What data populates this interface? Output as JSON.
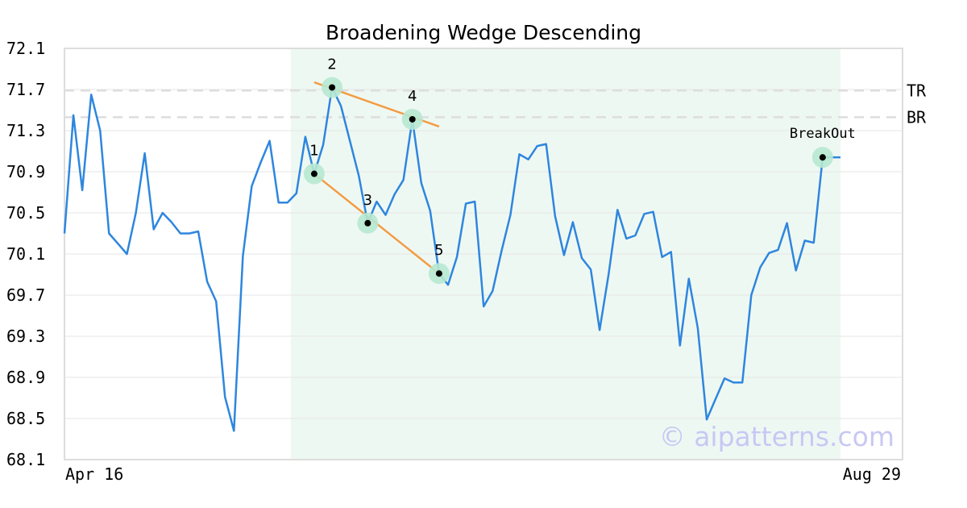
{
  "chart_data": {
    "type": "line",
    "title": "Broadening Wedge Descending",
    "xlabel": "",
    "ylabel": "",
    "ylim": [
      68.1,
      72.1
    ],
    "yticks": [
      "72.1",
      "71.7",
      "71.3",
      "70.9",
      "70.5",
      "70.1",
      "69.7",
      "69.3",
      "68.9",
      "68.5",
      "68.1"
    ],
    "x_labels": {
      "start": "Apr 16",
      "end": "Aug 29"
    },
    "grid": true,
    "colors": {
      "line": "#2e86de",
      "trend": "#f39c44",
      "marker_halo": "#b7e8d2",
      "region": "#eef8f3",
      "ref_line": "#dddddd"
    },
    "series": [
      {
        "values": [
          70.3,
          71.45,
          70.72,
          71.65,
          71.3,
          70.3,
          70.2,
          70.1,
          70.5,
          71.08,
          70.34,
          70.5,
          70.41,
          70.3,
          70.3,
          70.32,
          69.83,
          69.64,
          68.71,
          68.38,
          70.08,
          70.76,
          70.99,
          71.2,
          70.6,
          70.6,
          70.69,
          71.24,
          70.88,
          71.16,
          71.72,
          71.54,
          71.2,
          70.86,
          70.4,
          70.61,
          70.48,
          70.68,
          70.82,
          71.41,
          70.79,
          70.52,
          69.91,
          69.8,
          70.07,
          70.59,
          70.61,
          69.59,
          69.74,
          70.13,
          70.48,
          71.07,
          71.02,
          71.15,
          71.17,
          70.47,
          70.09,
          70.41,
          70.06,
          69.95,
          69.36,
          69.9,
          70.53,
          70.25,
          70.28,
          70.49,
          70.51,
          70.07,
          70.12,
          69.21,
          69.86,
          69.38,
          68.49,
          68.69,
          68.89,
          68.85,
          68.85,
          69.7,
          69.97,
          70.11,
          70.14,
          70.4,
          69.94,
          70.23,
          70.21,
          71.04,
          71.04,
          71.04
        ]
      }
    ],
    "pattern_region": {
      "start_index": 26,
      "end_index": 87
    },
    "pattern_points": [
      {
        "label": "1",
        "index": 28,
        "value": 70.88
      },
      {
        "label": "2",
        "index": 30,
        "value": 71.72
      },
      {
        "label": "3",
        "index": 34,
        "value": 70.4
      },
      {
        "label": "4",
        "index": 39,
        "value": 71.41
      },
      {
        "label": "5",
        "index": 42,
        "value": 69.91
      }
    ],
    "breakout": {
      "label": "BreakOut",
      "index": 85,
      "value": 71.04
    },
    "trend_lines": [
      {
        "from": {
          "index": 28,
          "value": 70.88
        },
        "to": {
          "index": 42,
          "value": 69.91
        }
      },
      {
        "from": {
          "index": 28,
          "value": 71.77
        },
        "to": {
          "index": 42,
          "value": 71.34
        }
      }
    ],
    "reference_lines": [
      {
        "label": "TR",
        "value": 71.69
      },
      {
        "label": "BR",
        "value": 71.43
      }
    ],
    "watermark": "© aipatterns.com"
  }
}
